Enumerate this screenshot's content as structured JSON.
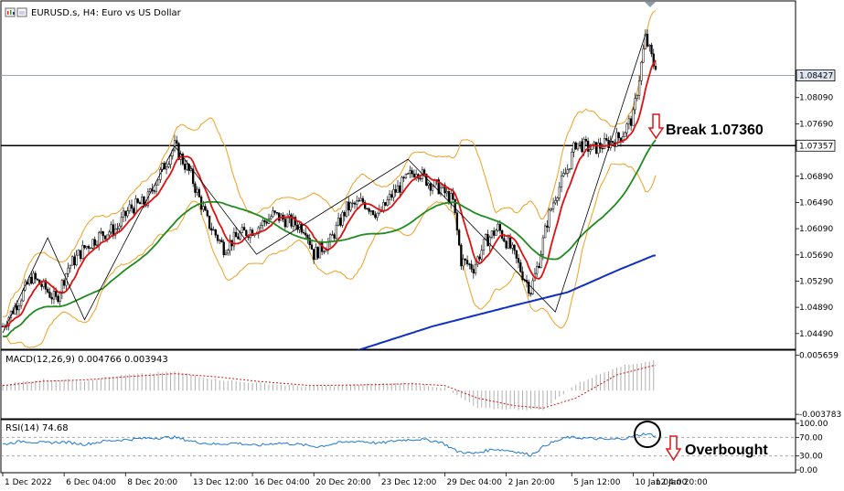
{
  "chart_data": [
    {
      "type": "candlestick",
      "title": "EURUSD.s, H4:  Euro vs US Dollar",
      "y_ticks": [
        "1.08427",
        "1.08090",
        "1.07690",
        "1.07357",
        "1.06890",
        "1.06490",
        "1.06090",
        "1.05690",
        "1.05290",
        "1.04890",
        "1.04490"
      ],
      "ylim": [
        1.0425,
        1.093
      ],
      "current_price": "1.08427",
      "level_line": {
        "value": 1.07357,
        "label": "1.07357"
      },
      "annotation": "Break 1.07360",
      "x_ticks": [
        "1 Dec 2022",
        "6 Dec 04:00",
        "8 Dec 20:00",
        "13 Dec 12:00",
        "16 Dec 04:00",
        "20 Dec 20:00",
        "23 Dec 12:00",
        "29 Dec 04:00",
        "2 Jan 20:00",
        "5 Jan 12:00",
        "10 Jan 04:00",
        "12 Jan 20:00"
      ],
      "colors": {
        "bull": "#000000",
        "bear": "#000000",
        "bollinger": "#f0a020",
        "ma_fast": "#e01010",
        "ma_mid": "#1e8c1e",
        "ma_slow": "#1030c0",
        "zigzag": "#000000",
        "level": "#000000"
      },
      "price_anchors": [
        [
          0,
          1.046
        ],
        [
          8,
          1.05
        ],
        [
          14,
          1.0535
        ],
        [
          20,
          1.052
        ],
        [
          26,
          1.05
        ],
        [
          32,
          1.055
        ],
        [
          40,
          1.058
        ],
        [
          48,
          1.06
        ],
        [
          56,
          1.061
        ],
        [
          62,
          1.064
        ],
        [
          70,
          1.065
        ],
        [
          78,
          1.07
        ],
        [
          84,
          1.0735
        ],
        [
          92,
          1.069
        ],
        [
          100,
          1.062
        ],
        [
          108,
          1.058
        ],
        [
          116,
          1.06
        ],
        [
          124,
          1.061
        ],
        [
          132,
          1.063
        ],
        [
          140,
          1.062
        ],
        [
          148,
          1.061
        ],
        [
          152,
          1.057
        ],
        [
          160,
          1.059
        ],
        [
          168,
          1.064
        ],
        [
          176,
          1.065
        ],
        [
          184,
          1.063
        ],
        [
          190,
          1.066
        ],
        [
          196,
          1.068
        ],
        [
          202,
          1.07
        ],
        [
          208,
          1.068
        ],
        [
          214,
          1.067
        ],
        [
          220,
          1.065
        ],
        [
          224,
          1.056
        ],
        [
          230,
          1.055
        ],
        [
          236,
          1.059
        ],
        [
          242,
          1.061
        ],
        [
          248,
          1.058
        ],
        [
          254,
          1.054
        ],
        [
          258,
          1.0515
        ],
        [
          262,
          1.056
        ],
        [
          266,
          1.062
        ],
        [
          270,
          1.066
        ],
        [
          276,
          1.07
        ],
        [
          280,
          1.074
        ],
        [
          288,
          1.073
        ],
        [
          296,
          1.074
        ],
        [
          302,
          1.075
        ],
        [
          308,
          1.078
        ],
        [
          314,
          1.09
        ],
        [
          318,
          1.086
        ]
      ],
      "zigzag_points": [
        [
          0,
          1.045
        ],
        [
          22,
          1.0595
        ],
        [
          40,
          1.047
        ],
        [
          84,
          1.0735
        ],
        [
          124,
          1.057
        ],
        [
          198,
          1.0715
        ],
        [
          270,
          1.0482
        ],
        [
          314,
          1.0905
        ]
      ]
    },
    {
      "type": "bar",
      "title": "MACD(12,26,9) 0.004766 0.003943",
      "y_ticks": [
        "0.005659",
        "-0.003783"
      ],
      "ylim": [
        -0.0042,
        0.006
      ],
      "macd_anchors": [
        [
          0,
          0.001
        ],
        [
          20,
          0.0018
        ],
        [
          40,
          0.0016
        ],
        [
          60,
          0.0025
        ],
        [
          84,
          0.003
        ],
        [
          104,
          0.0018
        ],
        [
          124,
          0.0012
        ],
        [
          150,
          0.0006
        ],
        [
          175,
          0.001
        ],
        [
          200,
          0.0012
        ],
        [
          216,
          0.0004
        ],
        [
          232,
          -0.0028
        ],
        [
          250,
          -0.003
        ],
        [
          264,
          -0.003
        ],
        [
          280,
          0.001
        ],
        [
          300,
          0.0038
        ],
        [
          318,
          0.0048
        ]
      ],
      "signal_anchors": [
        [
          0,
          0.0008
        ],
        [
          20,
          0.0015
        ],
        [
          40,
          0.0017
        ],
        [
          60,
          0.0022
        ],
        [
          84,
          0.0027
        ],
        [
          104,
          0.0022
        ],
        [
          124,
          0.0015
        ],
        [
          150,
          0.0008
        ],
        [
          175,
          0.0009
        ],
        [
          200,
          0.0011
        ],
        [
          216,
          0.0008
        ],
        [
          232,
          -0.0012
        ],
        [
          250,
          -0.0024
        ],
        [
          264,
          -0.0028
        ],
        [
          280,
          -0.0012
        ],
        [
          300,
          0.0025
        ],
        [
          318,
          0.004
        ]
      ],
      "colors": {
        "hist": "#b0b0b0",
        "signal": "#d01818"
      }
    },
    {
      "type": "line",
      "title": "RSI(14) 74.68",
      "y_ticks": [
        "100.00",
        "70.00",
        "30.00",
        "0.00"
      ],
      "ylim": [
        0,
        100
      ],
      "levels": [
        70,
        30
      ],
      "annotation": "Overbought",
      "rsi_anchors": [
        [
          0,
          55
        ],
        [
          10,
          62
        ],
        [
          20,
          58
        ],
        [
          30,
          60
        ],
        [
          40,
          55
        ],
        [
          50,
          62
        ],
        [
          60,
          65
        ],
        [
          70,
          68
        ],
        [
          84,
          70
        ],
        [
          94,
          60
        ],
        [
          104,
          55
        ],
        [
          114,
          58
        ],
        [
          124,
          52
        ],
        [
          134,
          58
        ],
        [
          144,
          55
        ],
        [
          154,
          50
        ],
        [
          164,
          58
        ],
        [
          174,
          62
        ],
        [
          184,
          57
        ],
        [
          194,
          64
        ],
        [
          204,
          66
        ],
        [
          214,
          60
        ],
        [
          222,
          40
        ],
        [
          230,
          35
        ],
        [
          240,
          45
        ],
        [
          250,
          40
        ],
        [
          258,
          32
        ],
        [
          266,
          55
        ],
        [
          276,
          70
        ],
        [
          286,
          68
        ],
        [
          296,
          65
        ],
        [
          304,
          68
        ],
        [
          314,
          78
        ],
        [
          318,
          74
        ]
      ],
      "colors": {
        "line": "#1e78d6",
        "levels": "#999999"
      }
    }
  ]
}
